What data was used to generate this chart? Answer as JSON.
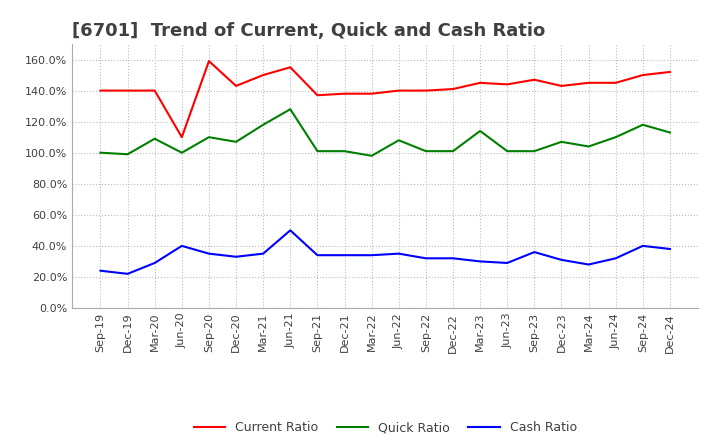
{
  "title": "[6701]  Trend of Current, Quick and Cash Ratio",
  "x_labels": [
    "Sep-19",
    "Dec-19",
    "Mar-20",
    "Jun-20",
    "Sep-20",
    "Dec-20",
    "Mar-21",
    "Jun-21",
    "Sep-21",
    "Dec-21",
    "Mar-22",
    "Jun-22",
    "Sep-22",
    "Dec-22",
    "Mar-23",
    "Jun-23",
    "Sep-23",
    "Dec-23",
    "Mar-24",
    "Jun-24",
    "Sep-24",
    "Dec-24"
  ],
  "current_ratio": [
    1.4,
    1.4,
    1.4,
    1.1,
    1.59,
    1.43,
    1.5,
    1.55,
    1.37,
    1.38,
    1.38,
    1.4,
    1.4,
    1.41,
    1.45,
    1.44,
    1.47,
    1.43,
    1.45,
    1.45,
    1.5,
    1.52
  ],
  "quick_ratio": [
    1.0,
    0.99,
    1.09,
    1.0,
    1.1,
    1.07,
    1.18,
    1.28,
    1.01,
    1.01,
    0.98,
    1.08,
    1.01,
    1.01,
    1.14,
    1.01,
    1.01,
    1.07,
    1.04,
    1.1,
    1.18,
    1.13
  ],
  "cash_ratio": [
    0.24,
    0.22,
    0.29,
    0.4,
    0.35,
    0.33,
    0.35,
    0.5,
    0.34,
    0.34,
    0.34,
    0.35,
    0.32,
    0.32,
    0.3,
    0.29,
    0.36,
    0.31,
    0.28,
    0.32,
    0.4,
    0.38
  ],
  "current_color": "#FF0000",
  "quick_color": "#008000",
  "cash_color": "#0000FF",
  "ylim_min": 0.0,
  "ylim_max": 1.7,
  "ytick_values": [
    0.0,
    0.2,
    0.4,
    0.6,
    0.8,
    1.0,
    1.2,
    1.4,
    1.6
  ],
  "grid_color": "#bbbbbb",
  "bg_color": "#ffffff",
  "title_color": "#404040",
  "legend_labels": [
    "Current Ratio",
    "Quick Ratio",
    "Cash Ratio"
  ],
  "title_fontsize": 13,
  "tick_fontsize": 8,
  "legend_fontsize": 9
}
